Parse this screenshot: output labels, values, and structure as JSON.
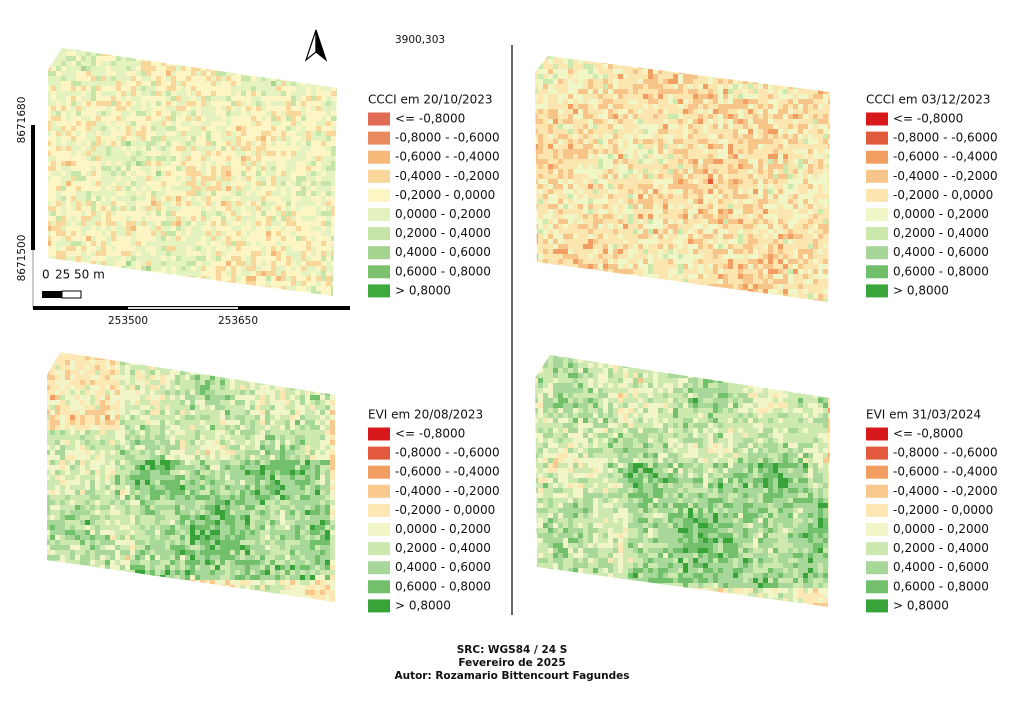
{
  "header": {
    "coordinate": "3900,303"
  },
  "axes": {
    "left_ticks": [
      "8671680",
      "8671500"
    ],
    "bottom_ticks": [
      "253500",
      "253650"
    ],
    "scale_labels": [
      "0",
      "25",
      "50 m"
    ]
  },
  "maps": [
    {
      "legend_title": "CCCI em 20/10/2023",
      "classes": [
        {
          "label": "<= -0,8000",
          "color": "#e26b55"
        },
        {
          "label": "-0,8000 - -0,6000",
          "color": "#e8895e"
        },
        {
          "label": "-0,6000 - -0,4000",
          "color": "#f5b97a"
        },
        {
          "label": "-0,4000 - -0,2000",
          "color": "#f9d79a"
        },
        {
          "label": "-0,2000 - 0,0000",
          "color": "#fdf6c4"
        },
        {
          "label": "0,0000 - 0,2000",
          "color": "#e4f2bf"
        },
        {
          "label": "0,2000 - 0,4000",
          "color": "#c6e5a8"
        },
        {
          "label": "0,4000 - 0,6000",
          "color": "#a4d490"
        },
        {
          "label": "0,6000 - 0,8000",
          "color": "#7cc26e"
        },
        {
          "label": "> 0,8000",
          "color": "#3ea93c"
        }
      ]
    },
    {
      "legend_title": "CCCI em 03/12/2023",
      "classes": [
        {
          "label": "<= -0,8000",
          "color": "#d7191c"
        },
        {
          "label": "-0,8000 - -0,6000",
          "color": "#e05a3c"
        },
        {
          "label": "-0,6000 - -0,4000",
          "color": "#f29e62"
        },
        {
          "label": "-0,4000 - -0,2000",
          "color": "#f7c489"
        },
        {
          "label": "-0,2000 - 0,0000",
          "color": "#fbe6b0"
        },
        {
          "label": "0,0000 - 0,2000",
          "color": "#f0f6c6"
        },
        {
          "label": "0,2000 - 0,4000",
          "color": "#cbe8ad"
        },
        {
          "label": "0,4000 - 0,6000",
          "color": "#a5d697"
        },
        {
          "label": "0,6000 - 0,8000",
          "color": "#6fbf6a"
        },
        {
          "label": "> 0,8000",
          "color": "#3aa53a"
        }
      ]
    },
    {
      "legend_title": "EVI em 20/08/2023",
      "classes": [
        {
          "label": "<= -0,8000",
          "color": "#d7191c"
        },
        {
          "label": "-0,8000 - -0,6000",
          "color": "#e35a3e"
        },
        {
          "label": "-0,6000 - -0,4000",
          "color": "#f29e62"
        },
        {
          "label": "-0,4000 - -0,2000",
          "color": "#f8c88c"
        },
        {
          "label": "-0,2000 - 0,0000",
          "color": "#fde8b4"
        },
        {
          "label": "0,0000 - 0,2000",
          "color": "#f2f5c7"
        },
        {
          "label": "0,2000 - 0,4000",
          "color": "#cde9b0"
        },
        {
          "label": "0,4000 - 0,6000",
          "color": "#a7d89a"
        },
        {
          "label": "0,6000 - 0,8000",
          "color": "#72bf6c"
        },
        {
          "label": "> 0,8000",
          "color": "#37a339"
        }
      ]
    },
    {
      "legend_title": "EVI em 31/03/2024",
      "classes": [
        {
          "label": "<= -0,8000",
          "color": "#d7191c"
        },
        {
          "label": "-0,8000 - -0,6000",
          "color": "#e35a3e"
        },
        {
          "label": "-0,6000 - -0,4000",
          "color": "#f29e62"
        },
        {
          "label": "-0,4000 - -0,2000",
          "color": "#f8c88c"
        },
        {
          "label": "-0,2000 - 0,0000",
          "color": "#fde8b4"
        },
        {
          "label": "0,0000 - 0,2000",
          "color": "#f2f5c7"
        },
        {
          "label": "0,2000 - 0,4000",
          "color": "#cde9b0"
        },
        {
          "label": "0,4000 - 0,6000",
          "color": "#a7d89a"
        },
        {
          "label": "0,6000 - 0,8000",
          "color": "#72bf6c"
        },
        {
          "label": "> 0,8000",
          "color": "#37a339"
        }
      ]
    }
  ],
  "footer": [
    "SRC: WGS84 / 24 S",
    "Fevereiro de 2025",
    "Autor: Rozamario Bittencourt Fagundes"
  ]
}
